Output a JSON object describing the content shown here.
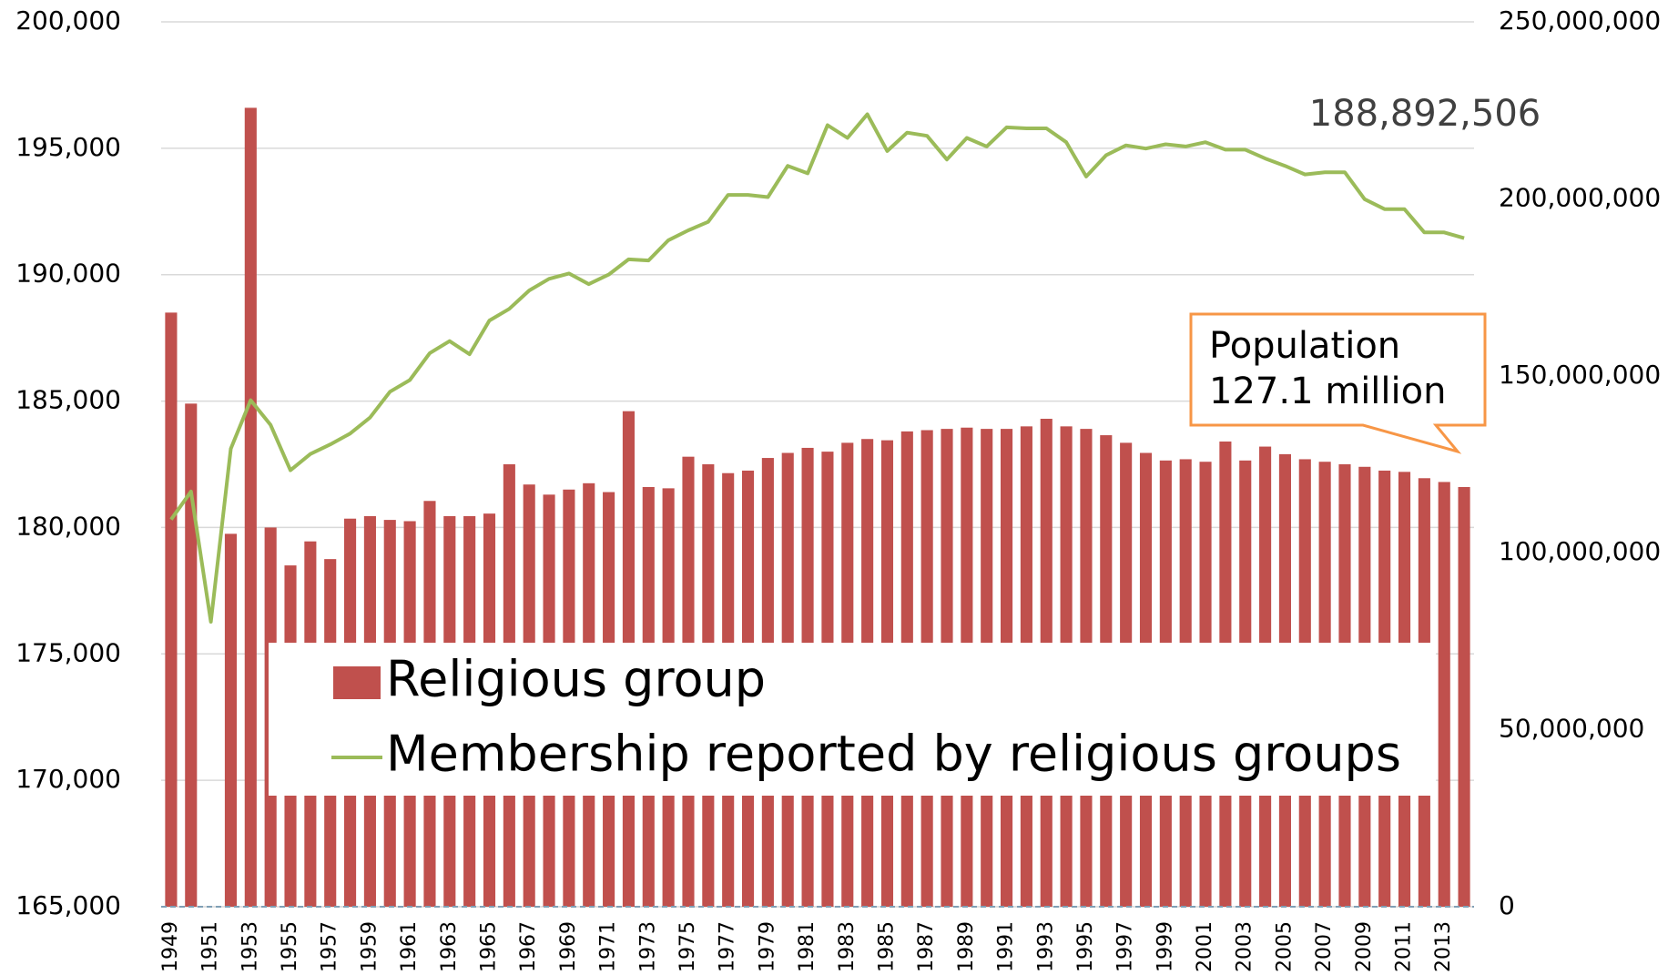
{
  "chart_data": {
    "type": "bar",
    "categories": [
      "1949",
      null,
      "1951",
      null,
      "1953",
      null,
      "1955",
      null,
      "1957",
      null,
      "1959",
      null,
      "1961",
      null,
      "1963",
      null,
      "1965",
      null,
      "1967",
      null,
      "1969",
      null,
      "1971",
      null,
      "1973",
      null,
      "1975",
      null,
      "1977",
      null,
      "1979",
      null,
      "1981",
      null,
      "1983",
      null,
      "1985",
      null,
      "1987",
      null,
      "1989",
      null,
      "1991",
      null,
      "1993",
      null,
      "1995",
      null,
      "1997",
      null,
      "1999",
      null,
      "2001",
      null,
      "2003",
      null,
      "2005",
      null,
      "2007",
      null,
      "2009",
      null,
      "2011",
      null,
      "2013",
      null
    ],
    "series": [
      {
        "name": "Religious group",
        "type": "bar",
        "axis": "y",
        "color": "#c0504d",
        "values": [
          188500,
          184900,
          null,
          179750,
          196600,
          180000,
          178500,
          179450,
          178750,
          180350,
          180450,
          180300,
          180250,
          181050,
          180450,
          180450,
          180550,
          182500,
          181700,
          181300,
          181500,
          181750,
          181400,
          184600,
          181600,
          181550,
          182800,
          182500,
          182150,
          182250,
          182750,
          182950,
          183150,
          183000,
          183350,
          183500,
          183450,
          183800,
          183850,
          183900,
          183950,
          183900,
          183900,
          184000,
          184300,
          184000,
          183900,
          183650,
          183350,
          182950,
          182650,
          182700,
          182600,
          183400,
          182650,
          183200,
          182900,
          182700,
          182600,
          182500,
          182400,
          182250,
          182200,
          181950,
          181800,
          181600
        ]
      },
      {
        "name": "Membership reported by religious groups",
        "type": "line",
        "axis": "y2",
        "color": "#9bbb59",
        "values": [
          109400000,
          117300000,
          80500000,
          129400000,
          143100000,
          136100000,
          123300000,
          127900000,
          130600000,
          133700000,
          138200000,
          145500000,
          148800000,
          156400000,
          159800000,
          156100000,
          165600000,
          168900000,
          174100000,
          177400000,
          178900000,
          175900000,
          178600000,
          182900000,
          182600000,
          188300000,
          191100000,
          193500000,
          201100000,
          201100000,
          200500000,
          209300000,
          207200000,
          220800000,
          217200000,
          223900000,
          213500000,
          218700000,
          217800000,
          211100000,
          217200000,
          214800000,
          220200000,
          219900000,
          219900000,
          216000000,
          206300000,
          212300000,
          215100000,
          214200000,
          215400000,
          214800000,
          216000000,
          213900000,
          213900000,
          211400000,
          209300000,
          206900000,
          207500000,
          207500000,
          199900000,
          197100000,
          197100000,
          190500000,
          190500000,
          188892506
        ]
      }
    ],
    "ylim": [
      165000,
      200000
    ],
    "yticks": [
      {
        "value": 165000,
        "label": "165,000"
      },
      {
        "value": 170000,
        "label": "170,000"
      },
      {
        "value": 175000,
        "label": "175,000"
      },
      {
        "value": 180000,
        "label": "180,000"
      },
      {
        "value": 185000,
        "label": "185,000"
      },
      {
        "value": 190000,
        "label": "190,000"
      },
      {
        "value": 195000,
        "label": "195,000"
      },
      {
        "value": 200000,
        "label": "200,000"
      }
    ],
    "y2lim": [
      0,
      250000000
    ],
    "y2ticks": [
      0,
      {
        "value": 50000000,
        "label": "50,000,000"
      },
      {
        "value": 100000000,
        "label": "100,000,000"
      },
      {
        "value": 150000000,
        "label": "150,000,000"
      },
      {
        "value": 200000000,
        "label": "200,000,000"
      },
      {
        "value": 250000000,
        "label": "250,000,000"
      }
    ],
    "grid": true,
    "legend": "center",
    "annotation": "188,892,506",
    "callout": [
      "Population",
      "127.1 million"
    ]
  }
}
